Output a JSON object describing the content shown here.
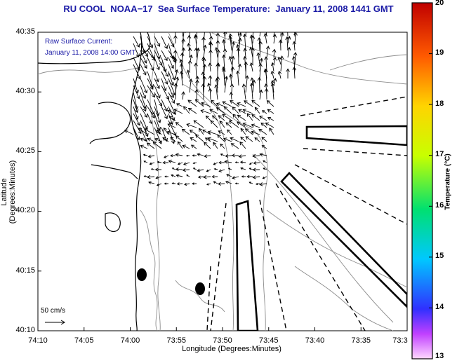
{
  "title": "RU COOL  NOAA−17  Sea Surface Temperature:  January 11, 2008 1441 GMT",
  "annotation": {
    "line1": "Raw Surface Current:",
    "line2": "January 11, 2008 14:00 GMT"
  },
  "axes": {
    "xlabel": "Longitude (Degrees:Minutes)",
    "ylabel": "Latitude (Degrees:Minutes)",
    "xticks": [
      "74:10",
      "74:05",
      "74:00",
      "73:55",
      "73:50",
      "73:45",
      "73:40",
      "73:35",
      "73:3"
    ],
    "yticks": [
      "40:35",
      "40:30",
      "40:25",
      "40:20",
      "40:15",
      "40:10"
    ]
  },
  "colorbar": {
    "label": "Temperature (°C)",
    "ticks": [
      "20",
      "19",
      "18",
      "17",
      "16",
      "15",
      "14",
      "13"
    ],
    "min": 13,
    "max": 20
  },
  "scale": {
    "label": "50 cm/s"
  },
  "colors": {
    "title": "#1a1aa6",
    "annotation": "#1a1aa6",
    "coastline": "#000000",
    "contours": "#8c8c8c",
    "vectors": "#000000"
  }
}
